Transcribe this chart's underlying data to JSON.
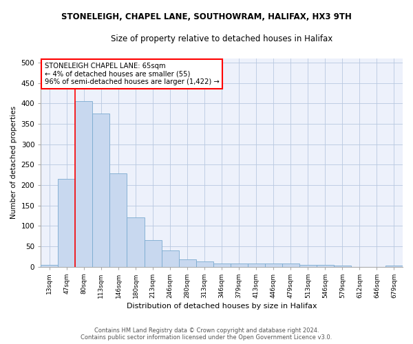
{
  "title": "STONELEIGH, CHAPEL LANE, SOUTHOWRAM, HALIFAX, HX3 9TH",
  "subtitle": "Size of property relative to detached houses in Halifax",
  "xlabel": "Distribution of detached houses by size in Halifax",
  "ylabel": "Number of detached properties",
  "bar_labels": [
    "13sqm",
    "47sqm",
    "80sqm",
    "113sqm",
    "146sqm",
    "180sqm",
    "213sqm",
    "246sqm",
    "280sqm",
    "313sqm",
    "346sqm",
    "379sqm",
    "413sqm",
    "446sqm",
    "479sqm",
    "513sqm",
    "546sqm",
    "579sqm",
    "612sqm",
    "646sqm",
    "679sqm"
  ],
  "bar_values": [
    5,
    215,
    405,
    375,
    228,
    120,
    65,
    40,
    18,
    13,
    8,
    7,
    7,
    7,
    7,
    5,
    5,
    3,
    0,
    0,
    3
  ],
  "bar_color": "#c8d8ef",
  "bar_edge_color": "#7aaad0",
  "red_line_x": 1.5,
  "annotation_line1": "STONELEIGH CHAPEL LANE: 65sqm",
  "annotation_line2": "← 4% of detached houses are smaller (55)",
  "annotation_line3": "96% of semi-detached houses are larger (1,422) →",
  "annotation_border_color": "red",
  "ylim": [
    0,
    510
  ],
  "yticks": [
    0,
    50,
    100,
    150,
    200,
    250,
    300,
    350,
    400,
    450,
    500
  ],
  "footer_line1": "Contains HM Land Registry data © Crown copyright and database right 2024.",
  "footer_line2": "Contains public sector information licensed under the Open Government Licence v3.0.",
  "background_color": "#edf1fb",
  "grid_color": "#b8c8e0",
  "title_fontsize": 8.5,
  "subtitle_fontsize": 8.5
}
